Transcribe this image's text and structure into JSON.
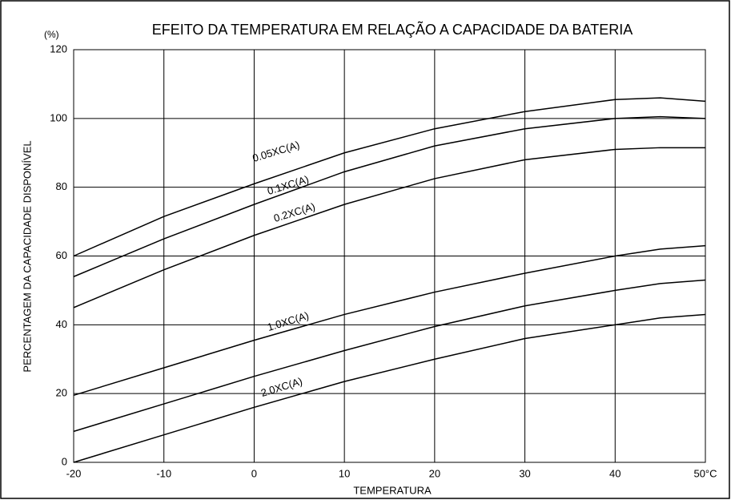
{
  "chart_data": {
    "type": "line",
    "title": "EFEITO DA TEMPERATURA EM RELAÇÃO A CAPACIDADE DA BATERIA",
    "y_unit": "(%)",
    "xlabel": "TEMPERATURA",
    "ylabel": "PERCENTAGEM DA CAPACIDADE DISPONÍVEL",
    "x": [
      -20,
      -10,
      0,
      10,
      20,
      30,
      40,
      45,
      50
    ],
    "series": [
      {
        "name": "0.05XC(A)",
        "color": "#000000",
        "values": [
          60,
          71.5,
          81,
          90,
          97,
          102,
          105.5,
          106,
          105
        ]
      },
      {
        "name": "0.1XC(A)",
        "color": "#000000",
        "values": [
          54,
          65,
          75,
          84.5,
          92,
          97,
          100,
          100.5,
          100
        ]
      },
      {
        "name": "0.2XC(A)",
        "color": "#000000",
        "values": [
          45,
          56,
          66,
          75,
          82.5,
          88,
          91,
          91.5,
          91.5
        ]
      },
      {
        "name": "1.0XC(A)",
        "color": "#000000",
        "values": [
          19.5,
          27.5,
          35.5,
          43,
          49.5,
          55,
          60,
          62,
          63
        ]
      },
      {
        "color": "#000000",
        "values": [
          9,
          17,
          25,
          32.5,
          39.5,
          45.5,
          50,
          52,
          53
        ]
      },
      {
        "name": "2.0XC(A)",
        "color": "#000000",
        "values": [
          0,
          8,
          16,
          23.5,
          30,
          36,
          40,
          42,
          43
        ]
      }
    ],
    "xlim": [
      -20,
      50
    ],
    "xticks": [
      -20,
      -10,
      0,
      10,
      20,
      30,
      40,
      {
        "value": 50,
        "label": "50°C"
      }
    ],
    "ylim": [
      0,
      120
    ],
    "yticks": [
      0,
      20,
      40,
      60,
      80,
      100,
      120
    ],
    "grid": true
  }
}
